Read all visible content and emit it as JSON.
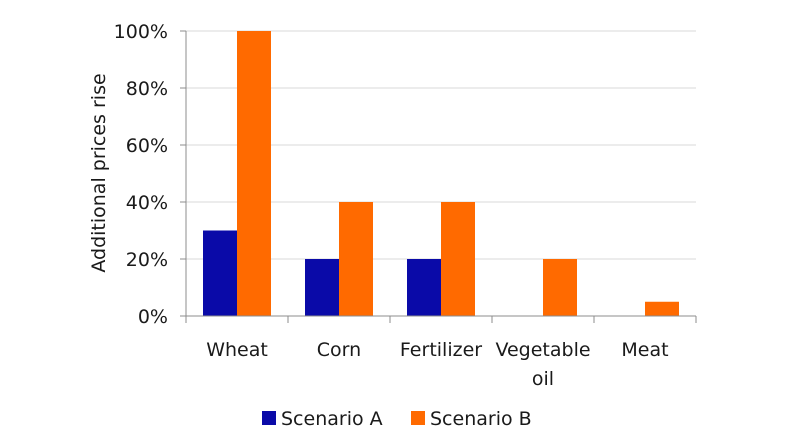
{
  "chart_data": {
    "type": "bar",
    "categories": [
      [
        "Wheat"
      ],
      [
        "Corn"
      ],
      [
        "Fertilizer"
      ],
      [
        "Vegetable",
        "oil"
      ],
      [
        "Meat"
      ]
    ],
    "series": [
      {
        "name": "Scenario A",
        "values": [
          0.3,
          0.2,
          0.2,
          0,
          0
        ],
        "color": "#0a0aa8"
      },
      {
        "name": "Scenario B",
        "values": [
          1.0,
          0.4,
          0.4,
          0.2,
          0.05
        ],
        "color": "#ff6a00"
      }
    ],
    "ylabel": "Additional prices rise",
    "yticks": [
      "0%",
      "20%",
      "40%",
      "60%",
      "80%",
      "100%"
    ],
    "ylim": [
      0,
      1
    ],
    "grid": true,
    "legend": "bottom"
  }
}
